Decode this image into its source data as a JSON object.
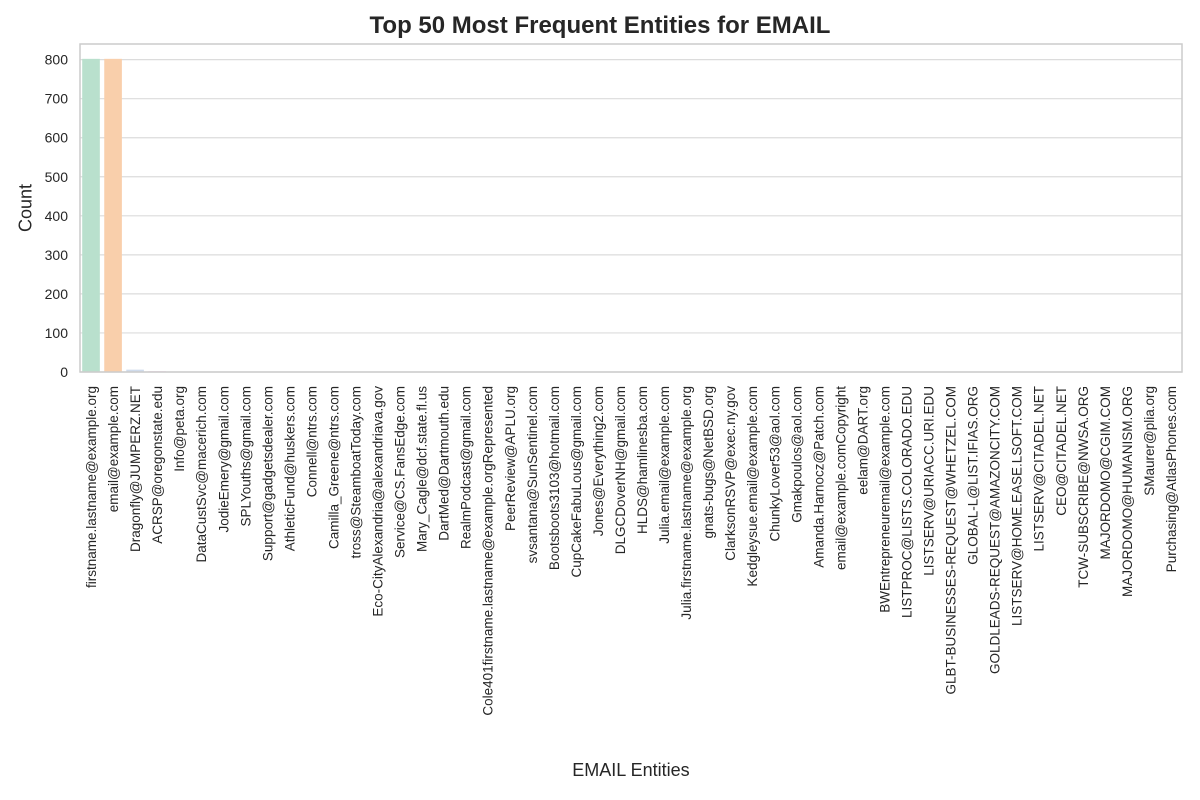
{
  "chart_data": {
    "type": "bar",
    "title": "Top 50 Most Frequent Entities for EMAIL",
    "xlabel": "EMAIL Entities",
    "ylabel": "Count",
    "ylim": [
      0,
      840
    ],
    "yticks": [
      0,
      100,
      200,
      300,
      400,
      500,
      600,
      700,
      800
    ],
    "grid": true,
    "categories": [
      "firstname.lastname@example.org",
      "email@example.com",
      "Dragonfly@JUMPERZ.NET",
      "ACRSP@oregonstate.edu",
      "Info@peta.org",
      "DataCustSvc@macerich.com",
      "JodieEmery@gmail.com",
      "SPLYouths@gmail.com",
      "Support@gadgetsdealer.com",
      "AthleticFund@huskers.com",
      "Connell@ntrs.com",
      "Camilla_Greene@ntrs.com",
      "tross@SteamboatToday.com",
      "Eco-CityAlexandria@alexandriava.gov",
      "Service@CS.FansEdge.com",
      "Mary_Cagle@dcf.state.fl.us",
      "DartMed@Dartmouth.edu",
      "RealmPodcast@gmail.com",
      "Cole401firstname.lastname@example.orgRepresented",
      "PeerReview@APLU.org",
      "svsantana@SunSentinel.com",
      "Bootsboots3103@hotmail.com",
      "CupCakeFabuLous@gmail.com",
      "Jones@Everything2.com",
      "DLGCDoverNH@gmail.com",
      "HLDS@hamlinesba.com",
      "Julia.email@example.com",
      "Julia.firstname.lastname@example.org",
      "gnats-bugs@NetBSD.org",
      "ClarksonRSVP@exec.ny.gov",
      "Kedgleysue.email@example.com",
      "ChunkyLover53@aol.com",
      "Gmakpoulos@aol.com",
      "Amanda.Harnocz@Patch.com",
      "email@example.comCopyright",
      "eelam@DART.org",
      "BWEntrepreneuremail@example.com",
      "LISTPROC@LISTS.COLORADO.EDU",
      "LISTSERV@URIACC.URI.EDU",
      "GLBT-BUSINESSES-REQUEST@WHETZEL.COM",
      "GLOBAL-L@LIST.IFIAS.ORG",
      "GOLDLEADS-REQUEST@AMAZONCITY.COM",
      "LISTSERV@HOME.EASE.LSOFT.COM",
      "LISTSERV@CITADEL.NET",
      "CEO@CITADEL.NET",
      "TCW-SUBSCRIBE@NWSA.ORG",
      "MAJORDOMO@CGIM.COM",
      "MAJORDOMO@HUMANISM.ORG",
      "SMaurer@plia.org",
      "Purchasing@AtlasPhones.com"
    ],
    "values": [
      802,
      802,
      6,
      2,
      1,
      1,
      1,
      1,
      1,
      1,
      1,
      1,
      1,
      1,
      1,
      1,
      1,
      1,
      1,
      1,
      1,
      1,
      1,
      1,
      1,
      1,
      1,
      1,
      1,
      1,
      1,
      1,
      1,
      1,
      1,
      1,
      1,
      1,
      1,
      1,
      1,
      1,
      1,
      1,
      1,
      1,
      1,
      1,
      1,
      1
    ],
    "colors": [
      "#b9e0cd",
      "#f9cfab",
      "#cfdbec",
      "#f1c8e0",
      "#dceec1",
      "#f9e9a0",
      "#e9dcc5",
      "#d6d6d6"
    ]
  }
}
